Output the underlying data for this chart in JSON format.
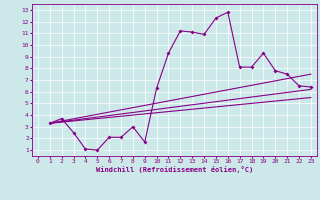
{
  "title": "",
  "xlabel": "Windchill (Refroidissement éolien,°C)",
  "bg_color": "#cce8e8",
  "line_color": "#880088",
  "xlim": [
    -0.5,
    23.5
  ],
  "ylim": [
    0.5,
    13.5
  ],
  "xticks": [
    0,
    1,
    2,
    3,
    4,
    5,
    6,
    7,
    8,
    9,
    10,
    11,
    12,
    13,
    14,
    15,
    16,
    17,
    18,
    19,
    20,
    21,
    22,
    23
  ],
  "yticks": [
    1,
    2,
    3,
    4,
    5,
    6,
    7,
    8,
    9,
    10,
    11,
    12,
    13
  ],
  "main_x": [
    1,
    2,
    3,
    4,
    5,
    6,
    7,
    8,
    9,
    10,
    11,
    12,
    13,
    14,
    15,
    16,
    17,
    18,
    19,
    20,
    21,
    22,
    23
  ],
  "main_y": [
    3.3,
    3.7,
    2.5,
    1.1,
    1.0,
    2.1,
    2.1,
    3.0,
    1.7,
    6.3,
    9.3,
    11.2,
    11.1,
    10.9,
    12.3,
    12.8,
    8.1,
    8.1,
    9.3,
    7.8,
    7.5,
    6.5,
    6.4
  ],
  "line1_x": [
    1,
    23
  ],
  "line1_y": [
    3.3,
    7.5
  ],
  "line2_x": [
    1,
    23
  ],
  "line2_y": [
    3.3,
    5.5
  ],
  "line3_x": [
    1,
    23
  ],
  "line3_y": [
    3.3,
    6.2
  ]
}
